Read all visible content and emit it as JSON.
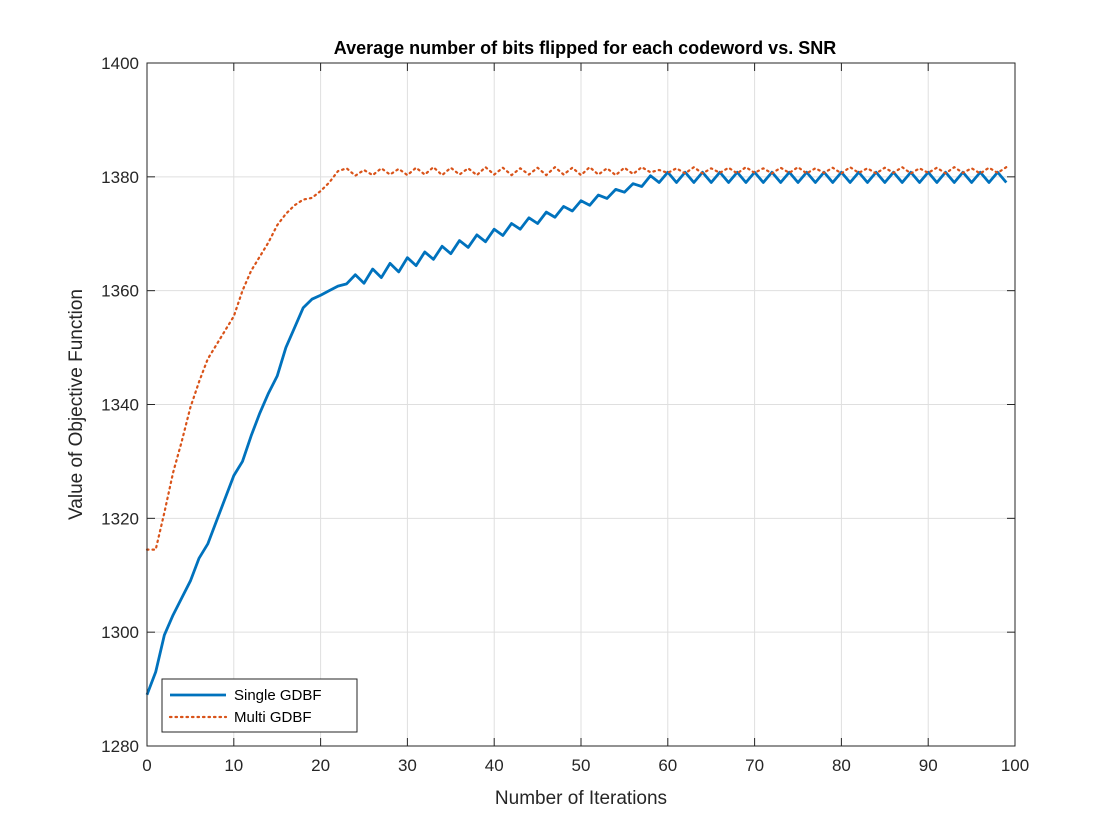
{
  "chart_data": {
    "type": "line",
    "title": "Average number of bits flipped for each codeword vs. SNR",
    "xlabel": "Number of Iterations",
    "ylabel": "Value of Objective Function",
    "xlim": [
      0,
      100
    ],
    "ylim": [
      1280,
      1400
    ],
    "xticks": [
      0,
      10,
      20,
      30,
      40,
      50,
      60,
      70,
      80,
      90,
      100
    ],
    "yticks": [
      1280,
      1300,
      1320,
      1340,
      1360,
      1380,
      1400
    ],
    "grid": true,
    "legend_position": "bottom-left",
    "series": [
      {
        "name": "Single GDBF",
        "color": "#0072BD",
        "line_style": "solid",
        "x": [
          0,
          1,
          2,
          3,
          4,
          5,
          6,
          7,
          8,
          9,
          10,
          11,
          12,
          13,
          14,
          15,
          16,
          17,
          18,
          19,
          20,
          21,
          22,
          23,
          24,
          25,
          26,
          27,
          28,
          29,
          30,
          31,
          32,
          33,
          34,
          35,
          36,
          37,
          38,
          39,
          40,
          41,
          42,
          43,
          44,
          45,
          46,
          47,
          48,
          49,
          50,
          51,
          52,
          53,
          54,
          55,
          56,
          57,
          58,
          59,
          60,
          61,
          62,
          63,
          64,
          65,
          66,
          67,
          68,
          69,
          70,
          71,
          72,
          73,
          74,
          75,
          76,
          77,
          78,
          79,
          80,
          81,
          82,
          83,
          84,
          85,
          86,
          87,
          88,
          89,
          90,
          91,
          92,
          93,
          94,
          95,
          96,
          97,
          98,
          99
        ],
        "y": [
          1289.0,
          1293.0,
          1299.5,
          1303.0,
          1306.0,
          1309.0,
          1313.0,
          1315.5,
          1319.5,
          1323.5,
          1327.5,
          1330.0,
          1334.5,
          1338.5,
          1342.0,
          1345.0,
          1350.0,
          1353.5,
          1357.0,
          1358.5,
          1359.2,
          1360.0,
          1360.8,
          1361.2,
          1362.8,
          1361.3,
          1363.8,
          1362.3,
          1364.8,
          1363.3,
          1365.8,
          1364.4,
          1366.8,
          1365.5,
          1367.8,
          1366.5,
          1368.8,
          1367.6,
          1369.8,
          1368.6,
          1370.8,
          1369.7,
          1371.8,
          1370.8,
          1372.8,
          1371.8,
          1373.8,
          1372.9,
          1374.8,
          1374.0,
          1375.8,
          1375.0,
          1376.8,
          1376.2,
          1377.8,
          1377.3,
          1378.8,
          1378.3,
          1380.2,
          1379.0,
          1380.8,
          1379.0,
          1380.8,
          1379.0,
          1380.8,
          1379.0,
          1380.8,
          1379.0,
          1380.8,
          1379.0,
          1380.8,
          1379.0,
          1380.8,
          1379.0,
          1380.8,
          1379.0,
          1380.8,
          1379.0,
          1380.8,
          1379.0,
          1380.8,
          1379.0,
          1380.8,
          1379.0,
          1380.8,
          1379.0,
          1380.8,
          1379.0,
          1380.8,
          1379.0,
          1380.8,
          1379.0,
          1380.8,
          1379.0,
          1380.8,
          1379.0,
          1380.8,
          1379.0,
          1380.8,
          1379.0
        ]
      },
      {
        "name": "Multi GDBF",
        "color": "#D95319",
        "line_style": "dotted",
        "x": [
          0,
          1,
          2,
          3,
          4,
          5,
          6,
          7,
          8,
          9,
          10,
          11,
          12,
          13,
          14,
          15,
          16,
          17,
          18,
          19,
          20,
          21,
          22,
          23,
          24,
          25,
          26,
          27,
          28,
          29,
          30,
          31,
          32,
          33,
          34,
          35,
          36,
          37,
          38,
          39,
          40,
          41,
          42,
          43,
          44,
          45,
          46,
          47,
          48,
          49,
          50,
          51,
          52,
          53,
          54,
          55,
          56,
          57,
          58,
          59,
          60,
          61,
          62,
          63,
          64,
          65,
          66,
          67,
          68,
          69,
          70,
          71,
          72,
          73,
          74,
          75,
          76,
          77,
          78,
          79,
          80,
          81,
          82,
          83,
          84,
          85,
          86,
          87,
          88,
          89,
          90,
          91,
          92,
          93,
          94,
          95,
          96,
          97,
          98,
          99
        ],
        "y": [
          1314.5,
          1314.5,
          1321.0,
          1328.0,
          1333.5,
          1339.5,
          1344.0,
          1348.0,
          1350.5,
          1353.0,
          1355.5,
          1360.0,
          1363.5,
          1366.0,
          1368.5,
          1371.5,
          1373.5,
          1375.0,
          1376.0,
          1376.3,
          1377.5,
          1379.0,
          1381.0,
          1381.5,
          1380.2,
          1381.2,
          1380.3,
          1381.5,
          1380.4,
          1381.4,
          1380.3,
          1381.6,
          1380.4,
          1381.7,
          1380.3,
          1381.6,
          1380.4,
          1381.5,
          1380.3,
          1381.7,
          1380.4,
          1381.6,
          1380.3,
          1381.5,
          1380.4,
          1381.6,
          1380.3,
          1381.7,
          1380.4,
          1381.6,
          1380.3,
          1381.7,
          1380.4,
          1381.5,
          1380.3,
          1381.6,
          1380.5,
          1381.7,
          1380.8,
          1381.2,
          1380.7,
          1381.5,
          1380.6,
          1381.7,
          1380.6,
          1381.5,
          1380.7,
          1381.6,
          1380.6,
          1381.7,
          1380.7,
          1381.5,
          1380.6,
          1381.6,
          1380.7,
          1381.7,
          1380.6,
          1381.5,
          1380.7,
          1381.6,
          1380.6,
          1381.7,
          1380.7,
          1381.5,
          1380.6,
          1381.6,
          1380.7,
          1381.7,
          1380.6,
          1381.5,
          1380.7,
          1381.6,
          1380.6,
          1381.7,
          1380.7,
          1381.5,
          1380.6,
          1381.6,
          1380.7,
          1381.7
        ]
      }
    ]
  }
}
